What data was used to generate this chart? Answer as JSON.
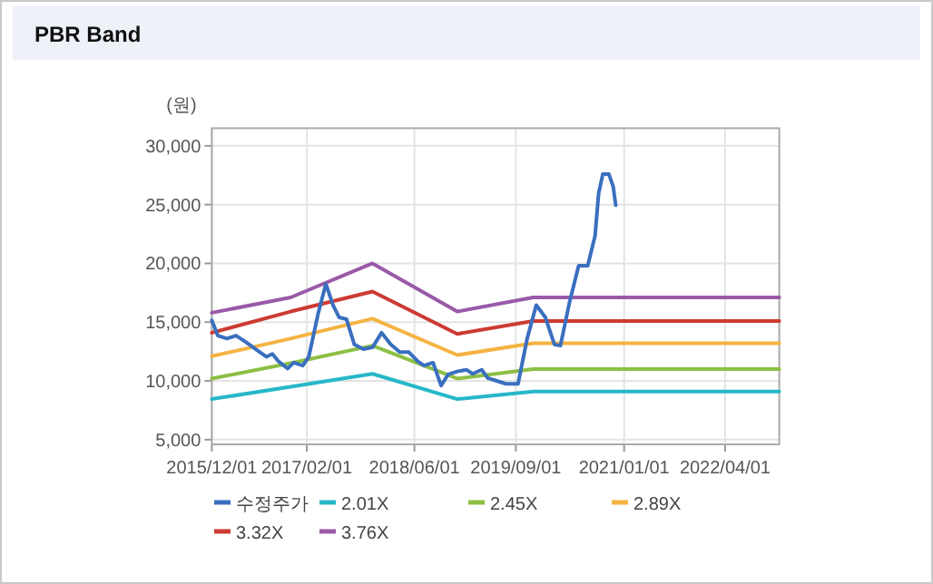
{
  "chart_data": {
    "type": "line",
    "title": "PBR Band",
    "ylabel": "(원)",
    "legend": "bottom",
    "grid": true,
    "marker": "none",
    "line_style": "solid",
    "xlim": [
      "2015-12-01",
      "2022-12-01"
    ],
    "xticks": [
      {
        "value": "2015-12-01",
        "label": "2015/12/01"
      },
      {
        "value": "2017-02-01",
        "label": "2017/02/01"
      },
      {
        "value": "2018-06-01",
        "label": "2018/06/01"
      },
      {
        "value": "2019-09-01",
        "label": "2019/09/01"
      },
      {
        "value": "2021-01-01",
        "label": "2021/01/01"
      },
      {
        "value": "2022-04-01",
        "label": "2022/04/01"
      }
    ],
    "ylim": [
      4600,
      31500
    ],
    "yticks": [
      {
        "value": 5000,
        "label": "5,000"
      },
      {
        "value": 10000,
        "label": "10,000"
      },
      {
        "value": 15000,
        "label": "15,000"
      },
      {
        "value": 20000,
        "label": "20,000"
      },
      {
        "value": 25000,
        "label": "25,000"
      },
      {
        "value": 30000,
        "label": "30,000"
      }
    ],
    "series": [
      {
        "name": "수정주가",
        "color": "#3a6fbf",
        "x": [
          "2015-12-01",
          "2015-12-28",
          "2016-02-07",
          "2016-03-19",
          "2016-04-29",
          "2016-06-23",
          "2016-08-03",
          "2016-08-30",
          "2016-09-27",
          "2016-11-07",
          "2016-12-04",
          "2017-01-14",
          "2017-02-10",
          "2017-03-23",
          "2017-04-28",
          "2017-05-30",
          "2017-06-27",
          "2017-07-30",
          "2017-09-03",
          "2017-10-14",
          "2017-11-24",
          "2018-01-04",
          "2018-02-14",
          "2018-03-27",
          "2018-05-07",
          "2018-06-17",
          "2018-07-14",
          "2018-08-24",
          "2018-09-29",
          "2018-10-31",
          "2018-12-11",
          "2019-01-21",
          "2019-02-18",
          "2019-03-31",
          "2019-04-27",
          "2019-06-07",
          "2019-07-18",
          "2019-09-11",
          "2019-10-22",
          "2019-12-02",
          "2020-01-12",
          "2020-02-22",
          "2020-03-20",
          "2020-04-30",
          "2020-06-10",
          "2020-07-21",
          "2020-08-23",
          "2020-09-08",
          "2020-09-27",
          "2020-10-24",
          "2020-11-13",
          "2020-11-24"
        ],
        "values": [
          15150,
          13850,
          13600,
          13850,
          13350,
          12600,
          12050,
          12300,
          11650,
          11050,
          11550,
          11300,
          12050,
          15650,
          18250,
          16450,
          15400,
          15250,
          13100,
          12700,
          12850,
          14100,
          13100,
          12450,
          12450,
          11650,
          11300,
          11550,
          9600,
          10550,
          10800,
          10950,
          10600,
          10950,
          10250,
          10000,
          9750,
          9750,
          13600,
          16450,
          15400,
          13100,
          13000,
          16700,
          19800,
          19800,
          22350,
          25950,
          27600,
          27600,
          26500,
          24950
        ]
      },
      {
        "name": "2.01X",
        "color": "#26b8c8",
        "x": [
          "2015-12-01",
          "2016-11-20",
          "2017-11-24",
          "2018-12-11",
          "2019-11-18",
          "2022-12-01"
        ],
        "values": [
          8450,
          9500,
          10600,
          8450,
          9100,
          9100
        ]
      },
      {
        "name": "2.45X",
        "color": "#8cbf44",
        "x": [
          "2015-12-01",
          "2016-11-20",
          "2017-11-24",
          "2018-12-11",
          "2019-11-18",
          "2022-12-01"
        ],
        "values": [
          10200,
          11500,
          13000,
          10200,
          11000,
          11000
        ]
      },
      {
        "name": "2.89X",
        "color": "#f5b342",
        "x": [
          "2015-12-01",
          "2016-11-20",
          "2017-11-24",
          "2018-12-11",
          "2019-11-18",
          "2022-12-01"
        ],
        "values": [
          12100,
          13600,
          15300,
          12200,
          13200,
          13200
        ]
      },
      {
        "name": "3.32X",
        "color": "#cc3b33",
        "x": [
          "2015-12-01",
          "2016-11-20",
          "2017-11-24",
          "2018-12-11",
          "2019-11-18",
          "2022-12-01"
        ],
        "values": [
          14100,
          15900,
          17600,
          14000,
          15100,
          15100
        ]
      },
      {
        "name": "3.76X",
        "color": "#9a5aa8",
        "x": [
          "2015-12-01",
          "2016-11-20",
          "2017-11-24",
          "2018-12-11",
          "2019-11-18",
          "2022-12-01"
        ],
        "values": [
          15800,
          17100,
          20000,
          15900,
          17100,
          17100
        ]
      }
    ]
  }
}
